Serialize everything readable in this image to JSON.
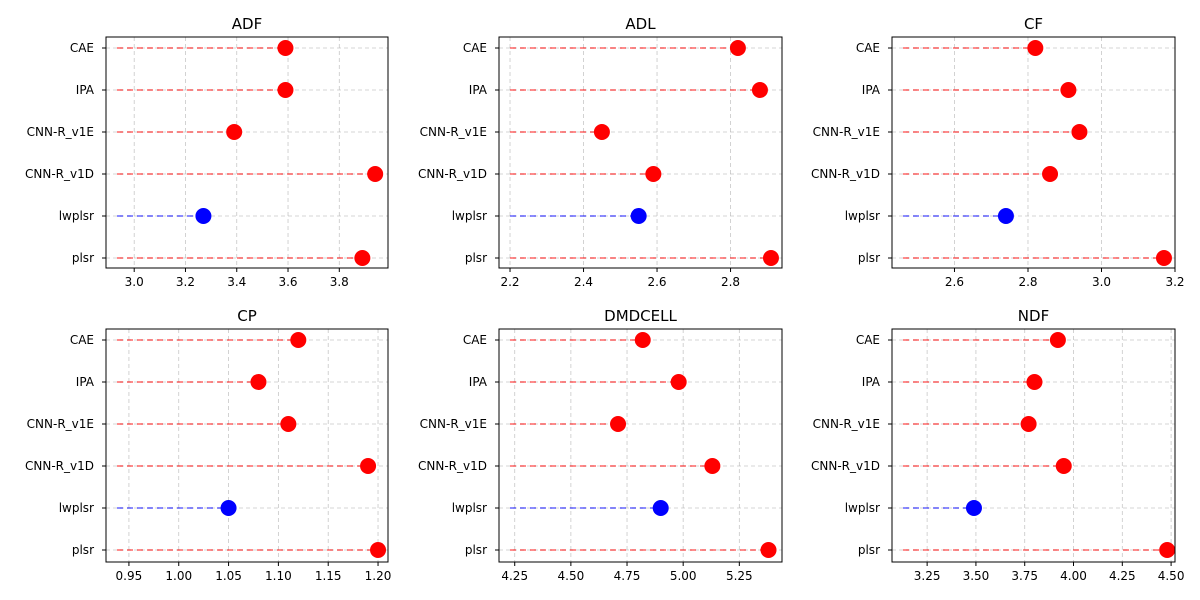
{
  "chart_data": [
    {
      "type": "dot",
      "title": "ADF",
      "categories": [
        "CAE",
        "IPA",
        "CNN-R_v1E",
        "CNN-R_v1D",
        "lwplsr",
        "plsr"
      ],
      "values": [
        3.59,
        3.59,
        3.39,
        3.94,
        3.27,
        3.89
      ],
      "highlight": "lwplsr",
      "xlim": [
        2.89,
        3.99
      ],
      "xticks": [
        "3.0",
        "3.2",
        "3.4",
        "3.6",
        "3.8"
      ],
      "grid": true
    },
    {
      "type": "dot",
      "title": "ADL",
      "categories": [
        "CAE",
        "IPA",
        "CNN-R_v1E",
        "CNN-R_v1D",
        "lwplsr",
        "plsr"
      ],
      "values": [
        2.82,
        2.88,
        2.45,
        2.59,
        2.55,
        2.91
      ],
      "highlight": "lwplsr",
      "xlim": [
        2.17,
        2.94
      ],
      "xticks": [
        "2.2",
        "2.4",
        "2.6",
        "2.8"
      ],
      "grid": true
    },
    {
      "type": "dot",
      "title": "CF",
      "categories": [
        "CAE",
        "IPA",
        "CNN-R_v1E",
        "CNN-R_v1D",
        "lwplsr",
        "plsr"
      ],
      "values": [
        2.82,
        2.91,
        2.94,
        2.86,
        2.74,
        3.17
      ],
      "highlight": "lwplsr",
      "xlim": [
        2.43,
        3.2
      ],
      "xticks": [
        "2.6",
        "2.8",
        "3.0",
        "3.2"
      ],
      "grid": true
    },
    {
      "type": "dot",
      "title": "CP",
      "categories": [
        "CAE",
        "IPA",
        "CNN-R_v1E",
        "CNN-R_v1D",
        "lwplsr",
        "plsr"
      ],
      "values": [
        1.12,
        1.08,
        1.11,
        1.19,
        1.05,
        1.2
      ],
      "highlight": "lwplsr",
      "xlim": [
        0.927,
        1.21
      ],
      "xticks": [
        "0.95",
        "1.00",
        "1.05",
        "1.10",
        "1.15",
        "1.20"
      ],
      "grid": true
    },
    {
      "type": "dot",
      "title": "DMDCELL",
      "categories": [
        "CAE",
        "IPA",
        "CNN-R_v1E",
        "CNN-R_v1D",
        "lwplsr",
        "plsr"
      ],
      "values": [
        4.82,
        4.98,
        4.71,
        5.13,
        4.9,
        5.38
      ],
      "highlight": "lwplsr",
      "xlim": [
        4.18,
        5.44
      ],
      "xticks": [
        "4.25",
        "4.50",
        "4.75",
        "5.00",
        "5.25"
      ],
      "grid": true
    },
    {
      "type": "dot",
      "title": "NDF",
      "categories": [
        "CAE",
        "IPA",
        "CNN-R_v1E",
        "CNN-R_v1D",
        "lwplsr",
        "plsr"
      ],
      "values": [
        3.92,
        3.8,
        3.77,
        3.95,
        3.49,
        4.48
      ],
      "highlight": "lwplsr",
      "xlim": [
        3.07,
        4.52
      ],
      "xticks": [
        "3.25",
        "3.50",
        "3.75",
        "4.00",
        "4.25",
        "4.50"
      ],
      "grid": true
    }
  ],
  "colors": {
    "default": "#ff0000",
    "highlight": "#0000ff",
    "grid": "#b0b0b0",
    "frame": "#000000"
  }
}
